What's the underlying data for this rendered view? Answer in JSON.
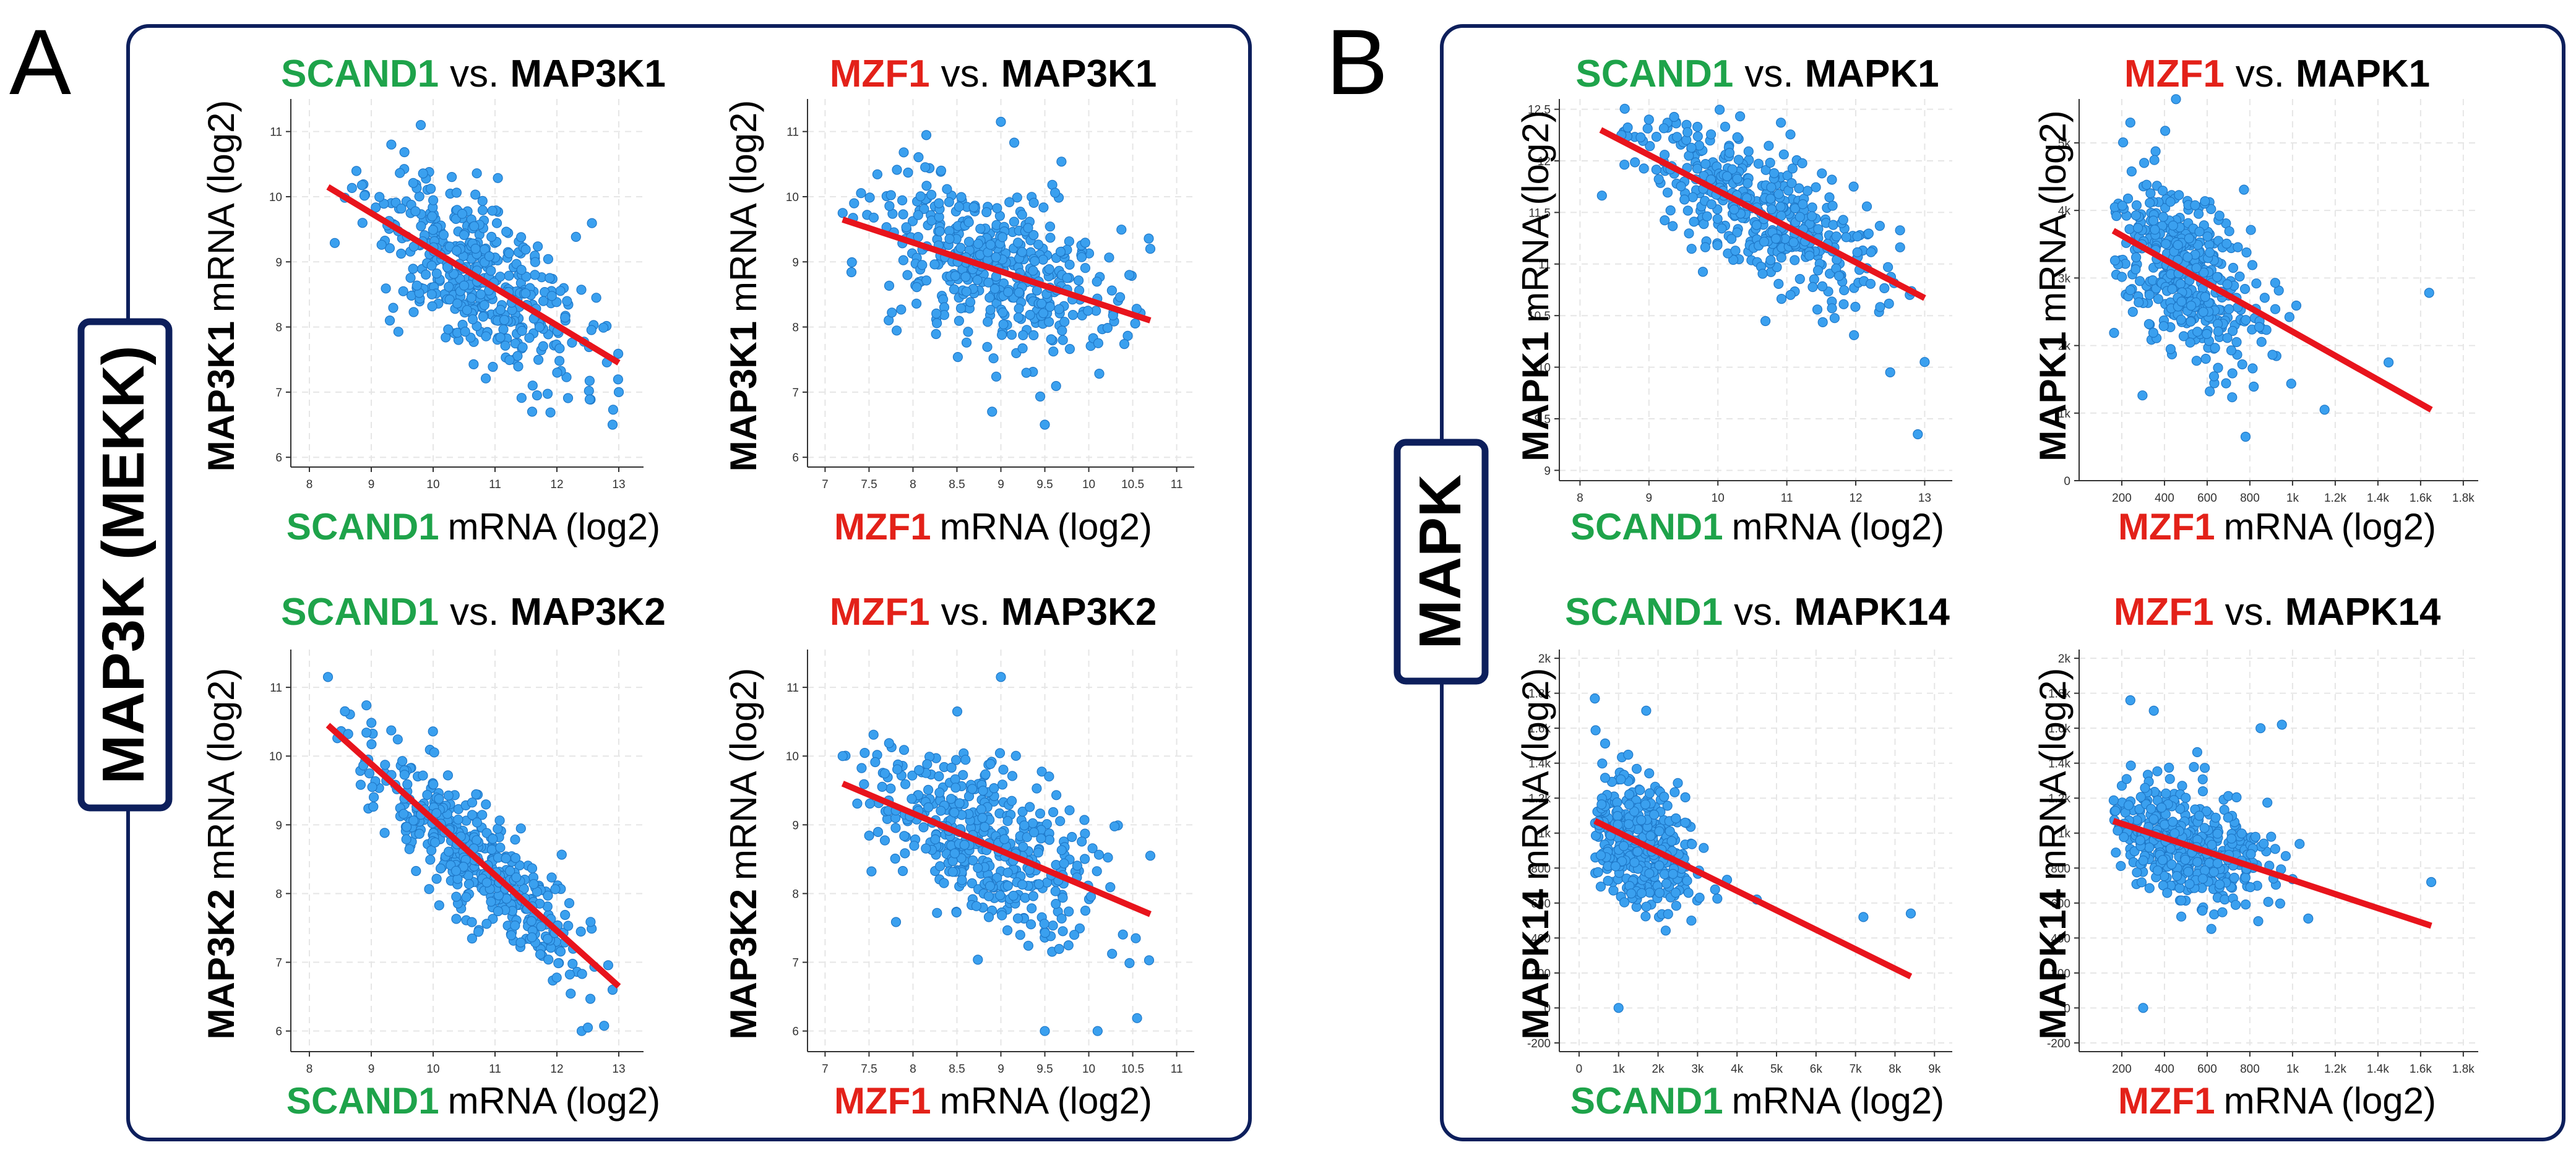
{
  "colors": {
    "green": "#1ea34a",
    "red": "#e32119",
    "black": "#000000",
    "border": "#0d1f5c",
    "point_fill": "#3aa0ef",
    "point_stroke": "#1f78c8",
    "fit_line": "#e8141c"
  },
  "panels": [
    {
      "letter": "A",
      "group_label": "MAP3K (MEKK)"
    },
    {
      "letter": "B",
      "group_label": "MAPK"
    }
  ],
  "common": {
    "vs": "vs.",
    "mrna_log2": "mRNA (log2)"
  },
  "chart_data": [
    {
      "type": "scatter",
      "id": "scand1_map3k1",
      "title": {
        "gene_x": "SCAND1",
        "gene_y": "MAP3K1"
      },
      "xlabel": {
        "gene": "SCAND1",
        "suffix": "mRNA (log2)"
      },
      "ylabel": {
        "gene": "MAP3K1",
        "suffix": "mRNA (log2)"
      },
      "x_color": "green",
      "xlim": [
        7.7,
        13.4
      ],
      "ylim": [
        5.85,
        11.5
      ],
      "xticks": [
        8,
        9,
        10,
        11,
        12,
        13
      ],
      "xtick_labels": [
        "8",
        "9",
        "10",
        "11",
        "12",
        "13"
      ],
      "yticks": [
        6,
        7,
        8,
        9,
        10,
        11
      ],
      "ytick_labels": [
        "6",
        "7",
        "8",
        "9",
        "10",
        "11"
      ],
      "fit": {
        "x": [
          8.3,
          13.0
        ],
        "y": [
          10.15,
          7.45
        ]
      },
      "cloud": {
        "n": 420,
        "seed": 11,
        "xmean": 10.7,
        "xsd": 0.9,
        "xmin": 8.3,
        "xmax": 13.0,
        "slope": -0.575,
        "icpt": 14.92,
        "noise": 0.55
      },
      "outliers": [
        [
          9.8,
          11.1
        ],
        [
          12.9,
          6.5
        ],
        [
          13.0,
          7.0
        ],
        [
          11.6,
          6.7
        ],
        [
          9.3,
          8.1
        ]
      ]
    },
    {
      "type": "scatter",
      "id": "mzf1_map3k1",
      "title": {
        "gene_x": "MZF1",
        "gene_y": "MAP3K1"
      },
      "xlabel": {
        "gene": "MZF1",
        "suffix": "mRNA (log2)"
      },
      "ylabel": {
        "gene": "MAP3K1",
        "suffix": "mRNA (log2)"
      },
      "x_color": "red",
      "xlim": [
        6.8,
        11.2
      ],
      "ylim": [
        5.85,
        11.5
      ],
      "xticks": [
        7,
        7.5,
        8,
        8.5,
        9,
        9.5,
        10,
        10.5,
        11
      ],
      "xtick_labels": [
        "7",
        "7.5",
        "8",
        "8.5",
        "9",
        "9.5",
        "10",
        "10.5",
        "11"
      ],
      "yticks": [
        6,
        7,
        8,
        9,
        10,
        11
      ],
      "ytick_labels": [
        "6",
        "7",
        "8",
        "9",
        "10",
        "11"
      ],
      "fit": {
        "x": [
          7.2,
          10.7
        ],
        "y": [
          9.65,
          8.1
        ]
      },
      "cloud": {
        "n": 420,
        "seed": 23,
        "xmean": 8.9,
        "xsd": 0.7,
        "xmin": 7.2,
        "xmax": 10.7,
        "slope": -0.443,
        "icpt": 12.84,
        "noise": 0.6
      },
      "outliers": [
        [
          9.0,
          11.15
        ],
        [
          9.5,
          6.5
        ],
        [
          8.9,
          6.7
        ],
        [
          7.2,
          9.75
        ],
        [
          10.7,
          9.2
        ]
      ]
    },
    {
      "type": "scatter",
      "id": "scand1_map3k2",
      "title": {
        "gene_x": "SCAND1",
        "gene_y": "MAP3K2"
      },
      "xlabel": {
        "gene": "SCAND1",
        "suffix": "mRNA (log2)"
      },
      "ylabel": {
        "gene": "MAP3K2",
        "suffix": "mRNA (log2)"
      },
      "x_color": "green",
      "xlim": [
        7.7,
        13.4
      ],
      "ylim": [
        5.7,
        11.55
      ],
      "xticks": [
        8,
        9,
        10,
        11,
        12,
        13
      ],
      "xtick_labels": [
        "8",
        "9",
        "10",
        "11",
        "12",
        "13"
      ],
      "yticks": [
        6,
        7,
        8,
        9,
        10,
        11
      ],
      "ytick_labels": [
        "6",
        "7",
        "8",
        "9",
        "10",
        "11"
      ],
      "fit": {
        "x": [
          8.3,
          13.0
        ],
        "y": [
          10.45,
          6.65
        ]
      },
      "cloud": {
        "n": 420,
        "seed": 37,
        "xmean": 10.7,
        "xsd": 0.9,
        "xmin": 8.3,
        "xmax": 13.0,
        "slope": -0.809,
        "icpt": 17.16,
        "noise": 0.42
      },
      "outliers": [
        [
          8.3,
          11.15
        ],
        [
          12.4,
          6.0
        ],
        [
          12.5,
          6.05
        ],
        [
          12.9,
          6.6
        ]
      ]
    },
    {
      "type": "scatter",
      "id": "mzf1_map3k2",
      "title": {
        "gene_x": "MZF1",
        "gene_y": "MAP3K2"
      },
      "xlabel": {
        "gene": "MZF1",
        "suffix": "mRNA (log2)"
      },
      "ylabel": {
        "gene": "MAP3K2",
        "suffix": "mRNA (log2)"
      },
      "x_color": "red",
      "xlim": [
        6.8,
        11.2
      ],
      "ylim": [
        5.7,
        11.55
      ],
      "xticks": [
        7,
        7.5,
        8,
        8.5,
        9,
        9.5,
        10,
        10.5,
        11
      ],
      "xtick_labels": [
        "7",
        "7.5",
        "8",
        "8.5",
        "9",
        "9.5",
        "10",
        "10.5",
        "11"
      ],
      "yticks": [
        6,
        7,
        8,
        9,
        10,
        11
      ],
      "ytick_labels": [
        "6",
        "7",
        "8",
        "9",
        "10",
        "11"
      ],
      "fit": {
        "x": [
          7.2,
          10.7
        ],
        "y": [
          9.6,
          7.7
        ]
      },
      "cloud": {
        "n": 420,
        "seed": 41,
        "xmean": 8.9,
        "xsd": 0.7,
        "xmin": 7.2,
        "xmax": 10.7,
        "slope": -0.543,
        "icpt": 13.51,
        "noise": 0.6
      },
      "outliers": [
        [
          9.0,
          11.15
        ],
        [
          9.5,
          6.0
        ],
        [
          10.1,
          6.0
        ],
        [
          7.2,
          10.0
        ],
        [
          10.7,
          8.55
        ]
      ]
    },
    {
      "type": "scatter",
      "id": "scand1_mapk1",
      "title": {
        "gene_x": "SCAND1",
        "gene_y": "MAPK1"
      },
      "xlabel": {
        "gene": "SCAND1",
        "suffix": "mRNA (log2)"
      },
      "ylabel": {
        "gene": "MAPK1",
        "suffix": "mRNA (log2)"
      },
      "x_color": "green",
      "xlim": [
        7.7,
        13.4
      ],
      "ylim": [
        8.9,
        12.6
      ],
      "xticks": [
        8,
        9,
        10,
        11,
        12,
        13
      ],
      "xtick_labels": [
        "8",
        "9",
        "10",
        "11",
        "12",
        "13"
      ],
      "yticks": [
        9,
        9.5,
        10,
        10.5,
        11,
        11.5,
        12,
        12.5
      ],
      "ytick_labels": [
        "9",
        "9.5",
        "10",
        "10.5",
        "11",
        "11.5",
        "12",
        "12.5"
      ],
      "fit": {
        "x": [
          8.3,
          13.0
        ],
        "y": [
          12.3,
          10.67
        ]
      },
      "cloud": {
        "n": 420,
        "seed": 53,
        "xmean": 10.6,
        "xsd": 0.9,
        "xmin": 8.3,
        "xmax": 13.0,
        "slope": -0.347,
        "icpt": 15.18,
        "noise": 0.3
      },
      "outliers": [
        [
          12.9,
          9.35
        ],
        [
          13.0,
          10.05
        ],
        [
          12.5,
          9.95
        ],
        [
          9.0,
          12.4
        ],
        [
          8.6,
          12.25
        ]
      ]
    },
    {
      "type": "scatter",
      "id": "mzf1_mapk1",
      "title": {
        "gene_x": "MZF1",
        "gene_y": "MAPK1"
      },
      "xlabel": {
        "gene": "MZF1",
        "suffix": "mRNA (log2)"
      },
      "ylabel": {
        "gene": "MAPK1",
        "suffix": "mRNA (log2)"
      },
      "x_color": "red",
      "xlim": [
        0,
        1870
      ],
      "ylim": [
        0,
        5650
      ],
      "xticks": [
        200,
        400,
        600,
        800,
        1000,
        1200,
        1400,
        1600,
        1800
      ],
      "xtick_labels": [
        "200",
        "400",
        "600",
        "800",
        "1k",
        "1.2k",
        "1.4k",
        "1.6k",
        "1.8k"
      ],
      "yticks": [
        0,
        1000,
        2000,
        3000,
        4000,
        5000
      ],
      "ytick_labels": [
        "0",
        "1k",
        "2k",
        "3k",
        "4k",
        "5k"
      ],
      "fit": {
        "x": [
          160,
          1650
        ],
        "y": [
          3700,
          1050
        ]
      },
      "cloud": {
        "n": 420,
        "seed": 67,
        "xmean": 480,
        "xsd": 190,
        "xmin": 160,
        "xmax": 1400,
        "slope": -1.779,
        "icpt": 3985,
        "noise": 600
      },
      "outliers": [
        [
          240,
          5300
        ],
        [
          1640,
          2780
        ],
        [
          780,
          650
        ],
        [
          1150,
          1050
        ],
        [
          1450,
          1750
        ]
      ]
    },
    {
      "type": "scatter",
      "id": "scand1_mapk14",
      "title": {
        "gene_x": "SCAND1",
        "gene_y": "MAPK14"
      },
      "xlabel": {
        "gene": "SCAND1",
        "suffix": "mRNA (log2)"
      },
      "ylabel": {
        "gene": "MAPK14",
        "suffix": "mRNA (log2)"
      },
      "x_color": "green",
      "xlim": [
        -500,
        9450
      ],
      "ylim": [
        -250,
        2050
      ],
      "xticks": [
        0,
        1000,
        2000,
        3000,
        4000,
        5000,
        6000,
        7000,
        8000,
        9000
      ],
      "xtick_labels": [
        "0",
        "1k",
        "2k",
        "3k",
        "4k",
        "5k",
        "6k",
        "7k",
        "8k",
        "9k"
      ],
      "yticks": [
        -200,
        0,
        200,
        400,
        600,
        800,
        1000,
        1200,
        1400,
        1600,
        1800,
        2000
      ],
      "ytick_labels": [
        "-200",
        "0",
        "200",
        "400",
        "600",
        "800",
        "1k",
        "1.2k",
        "1.4k",
        "1.6k",
        "1.8k",
        "2k"
      ],
      "fit": {
        "x": [
          400,
          8400
        ],
        "y": [
          1070,
          180
        ]
      },
      "cloud": {
        "n": 420,
        "seed": 79,
        "xmean": 1400,
        "xsd": 800,
        "xmin": 400,
        "xmax": 5200,
        "slope": -0.111,
        "icpt": 1115,
        "noise": 170
      },
      "outliers": [
        [
          400,
          1770
        ],
        [
          1700,
          1700
        ],
        [
          1000,
          0
        ],
        [
          7200,
          520
        ],
        [
          8400,
          540
        ],
        [
          4500,
          620
        ]
      ]
    },
    {
      "type": "scatter",
      "id": "mzf1_mapk14",
      "title": {
        "gene_x": "MZF1",
        "gene_y": "MAPK14"
      },
      "xlabel": {
        "gene": "MZF1",
        "suffix": "mRNA (log2)"
      },
      "ylabel": {
        "gene": "MAPK14",
        "suffix": "mRNA (log2)"
      },
      "x_color": "red",
      "xlim": [
        0,
        1870
      ],
      "ylim": [
        -250,
        2050
      ],
      "xticks": [
        200,
        400,
        600,
        800,
        1000,
        1200,
        1400,
        1600,
        1800
      ],
      "xtick_labels": [
        "200",
        "400",
        "600",
        "800",
        "1k",
        "1.2k",
        "1.4k",
        "1.6k",
        "1.8k"
      ],
      "yticks": [
        -200,
        0,
        200,
        400,
        600,
        800,
        1000,
        1200,
        1400,
        1600,
        1800,
        2000
      ],
      "ytick_labels": [
        "-200",
        "0",
        "200",
        "400",
        "600",
        "800",
        "1k",
        "1.2k",
        "1.4k",
        "1.6k",
        "1.8k",
        "2k"
      ],
      "fit": {
        "x": [
          160,
          1650
        ],
        "y": [
          1070,
          470
        ]
      },
      "cloud": {
        "n": 420,
        "seed": 97,
        "xmean": 480,
        "xsd": 190,
        "xmin": 160,
        "xmax": 1400,
        "slope": -0.403,
        "icpt": 1134,
        "noise": 170
      },
      "outliers": [
        [
          240,
          1760
        ],
        [
          350,
          1700
        ],
        [
          950,
          1620
        ],
        [
          1650,
          720
        ],
        [
          300,
          0
        ],
        [
          850,
          1600
        ]
      ]
    }
  ]
}
